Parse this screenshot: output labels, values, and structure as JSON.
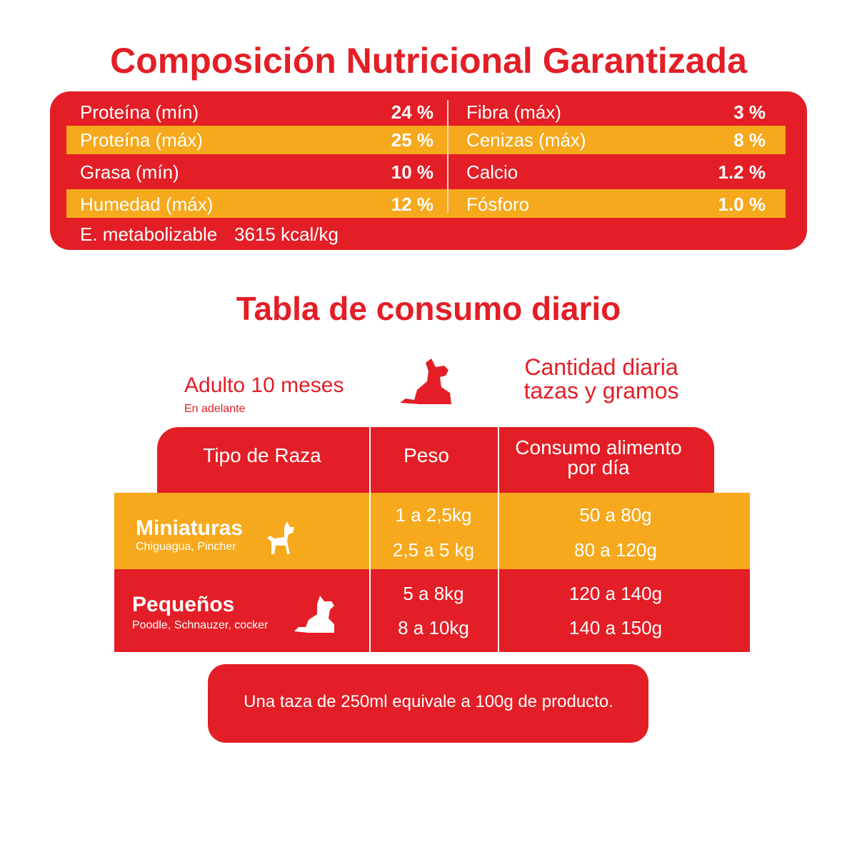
{
  "nutrition": {
    "title": "Composición Nutricional Garantizada",
    "rows": [
      [
        {
          "label": "Proteína (mín)",
          "value": "24 %"
        },
        {
          "label": "Fibra (máx)",
          "value": "3 %"
        }
      ],
      [
        {
          "label": "Proteína (máx)",
          "value": "25 %"
        },
        {
          "label": "Cenizas (máx)",
          "value": "8 %"
        }
      ],
      [
        {
          "label": "Grasa (mín)",
          "value": "10 %"
        },
        {
          "label": "Calcio",
          "value": "1.2 %"
        }
      ],
      [
        {
          "label": "Humedad (máx)",
          "value": "12 %"
        },
        {
          "label": "Fósforo",
          "value": "1.0 %"
        }
      ]
    ],
    "energy": {
      "label": "E. metabolizable",
      "value": "3615 kcal/kg"
    }
  },
  "consumption": {
    "title": "Tabla de consumo diario",
    "age": "Adulto 10 meses",
    "age_note": "En adelante",
    "quantity_label": [
      "Cantidad diaria",
      "tazas y gramos"
    ],
    "headers": [
      "Tipo de Raza",
      "Peso",
      [
        "Consumo alimento",
        "por día"
      ]
    ],
    "groups": [
      {
        "name": "Miniaturas",
        "breeds": "Chiguagua, Pincher",
        "weights": [
          "1 a 2,5kg",
          "2,5 a 5 kg"
        ],
        "amounts": [
          "50 a 80g",
          "80 a 120g"
        ]
      },
      {
        "name": "Pequeños",
        "breeds": "Poodle, Schnauzer, cocker",
        "weights": [
          "5 a 8kg",
          "8 a 10kg"
        ],
        "amounts": [
          "120 a 140g",
          "140 a 150g"
        ]
      }
    ],
    "note": "Una taza de 250ml equivale a 100g de producto."
  }
}
